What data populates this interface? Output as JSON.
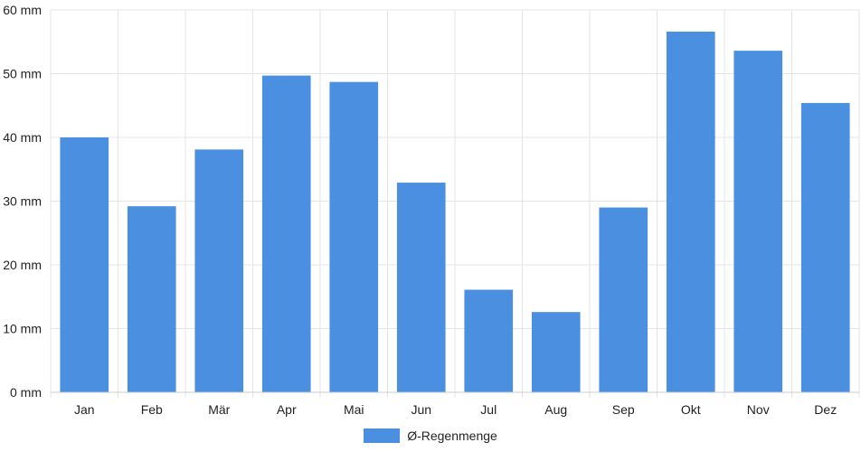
{
  "chart_data": {
    "type": "bar",
    "categories": [
      "Jan",
      "Feb",
      "Mär",
      "Apr",
      "Mai",
      "Jun",
      "Jul",
      "Aug",
      "Sep",
      "Okt",
      "Nov",
      "Dez"
    ],
    "series": [
      {
        "name": "Ø-Regenmenge",
        "values": [
          40.0,
          29.2,
          38.1,
          49.7,
          48.7,
          32.9,
          16.1,
          12.6,
          29.0,
          56.6,
          53.6,
          45.4
        ]
      }
    ],
    "ylim": [
      0,
      60
    ],
    "yticks": [
      0,
      10,
      20,
      30,
      40,
      50,
      60
    ],
    "ytick_labels": [
      "0 mm",
      "10 mm",
      "20 mm",
      "30 mm",
      "40 mm",
      "50 mm",
      "60 mm"
    ],
    "xlabel": "",
    "ylabel": "",
    "grid": true,
    "legend_position": "bottom",
    "colors": {
      "bar": "#4a8fe0",
      "grid": "#e5e5e5",
      "axis": "#cccccc"
    }
  },
  "legend": {
    "label": "Ø-Regenmenge"
  }
}
